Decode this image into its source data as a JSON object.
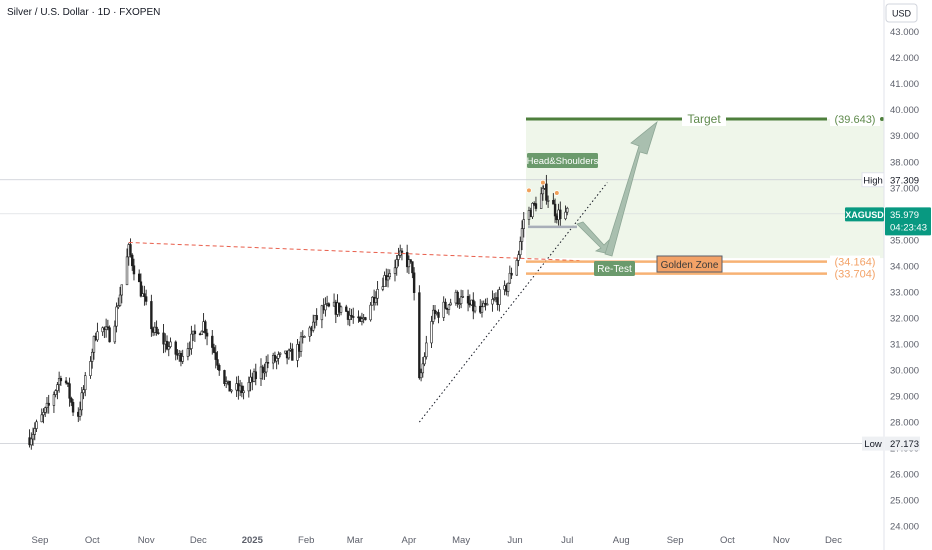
{
  "header": {
    "title": "Silver / U.S. Dollar · 1D · FXOPEN"
  },
  "currency_button": {
    "label": "USD"
  },
  "colors": {
    "bull": "#26a69a",
    "bear": "#ef5350",
    "candle": "#1f1f1f",
    "target": "#4e7f3c",
    "target_zone": "#e9f3e3",
    "golden": "#f6a55c",
    "current_price": "#089981",
    "trendline": "#e85d4a"
  },
  "chart_data": {
    "type": "candlestick",
    "title": "Silver / U.S. Dollar · 1D · FXOPEN",
    "currency": "USD",
    "ylim": [
      23.7,
      43.6
    ],
    "y_ticks": [
      "24.000",
      "25.000",
      "26.000",
      "27.000",
      "28.000",
      "29.000",
      "30.000",
      "31.000",
      "32.000",
      "33.000",
      "34.000",
      "35.000",
      "36.000",
      "37.000",
      "38.000",
      "39.000",
      "40.000",
      "41.000",
      "42.000",
      "43.000"
    ],
    "x_ticks": [
      "Sep",
      "Oct",
      "Nov",
      "Dec",
      "2025",
      "Feb",
      "Mar",
      "Apr",
      "May",
      "Jun",
      "Jul",
      "Aug",
      "Sep",
      "Oct",
      "Nov",
      "Dec"
    ],
    "price_path": [
      [
        "2024-08-26",
        27.4
      ],
      [
        "2024-09-06",
        28.6
      ],
      [
        "2024-09-14",
        30.0
      ],
      [
        "2024-09-22",
        28.0
      ],
      [
        "2024-10-04",
        31.7
      ],
      [
        "2024-10-12",
        31.3
      ],
      [
        "2024-10-22",
        34.6
      ],
      [
        "2024-11-05",
        31.5
      ],
      [
        "2024-11-20",
        30.5
      ],
      [
        "2024-12-04",
        31.8
      ],
      [
        "2024-12-18",
        29.3
      ],
      [
        "2024-12-27",
        29.2
      ],
      [
        "2025-01-10",
        30.3
      ],
      [
        "2025-01-25",
        30.6
      ],
      [
        "2025-02-10",
        32.3
      ],
      [
        "2025-02-22",
        32.4
      ],
      [
        "2025-03-04",
        31.7
      ],
      [
        "2025-03-15",
        33.3
      ],
      [
        "2025-03-28",
        34.4
      ],
      [
        "2025-04-03",
        33.9
      ],
      [
        "2025-04-07",
        29.5
      ],
      [
        "2025-04-14",
        32.0
      ],
      [
        "2025-04-28",
        32.8
      ],
      [
        "2025-05-12",
        32.2
      ],
      [
        "2025-05-26",
        33.0
      ],
      [
        "2025-06-03",
        34.5
      ],
      [
        "2025-06-06",
        35.8
      ],
      [
        "2025-06-12",
        36.3
      ],
      [
        "2025-06-18",
        36.9
      ],
      [
        "2025-06-25",
        36.0
      ],
      [
        "2025-07-01",
        36.0
      ]
    ],
    "current": {
      "symbol": "XAGUSD",
      "price": "35.979",
      "countdown": "04:23:43"
    },
    "high": {
      "label": "High",
      "value": "37.309"
    },
    "low": {
      "label": "Low",
      "value": "27.173"
    },
    "target": {
      "label": "Target",
      "value": "(39.643)"
    },
    "levels": [
      "(34.164)",
      "(33.704)"
    ],
    "annotations": {
      "pattern": "Head&Shoulders",
      "retest": "Re-Test",
      "zone": "Golden Zone"
    }
  }
}
